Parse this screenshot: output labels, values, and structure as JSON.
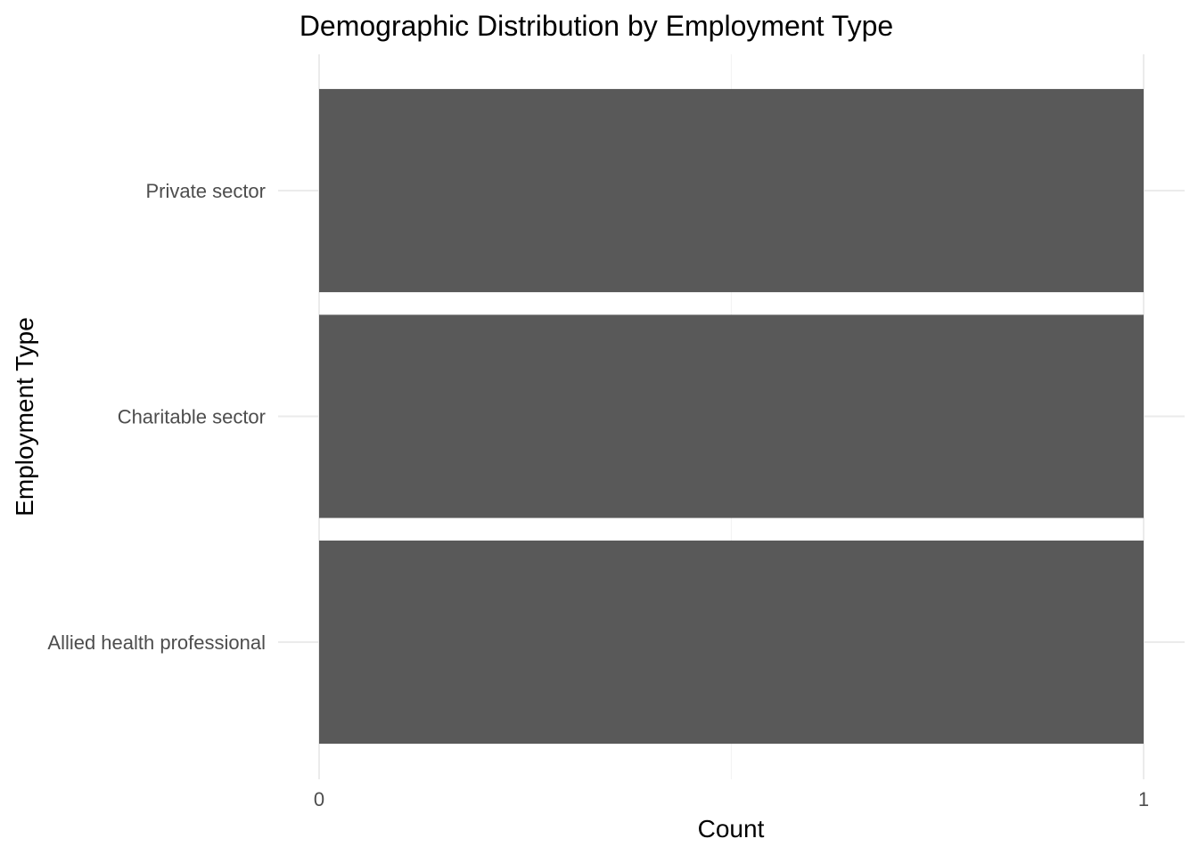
{
  "chart_data": {
    "type": "bar",
    "orientation": "horizontal",
    "title": "Demographic Distribution by Employment Type",
    "xlabel": "Count",
    "ylabel": "Employment Type",
    "categories": [
      "Allied health professional",
      "Charitable sector",
      "Private sector"
    ],
    "values": [
      1,
      1,
      1
    ],
    "xlim": [
      0,
      1
    ],
    "x_ticks": [
      "0",
      "1"
    ],
    "grid": true,
    "legend": "none",
    "colors": {
      "bar": "#595959",
      "grid_major": "#ebebeb",
      "grid_minor": "#f3f3f3",
      "background": "#ffffff"
    }
  }
}
